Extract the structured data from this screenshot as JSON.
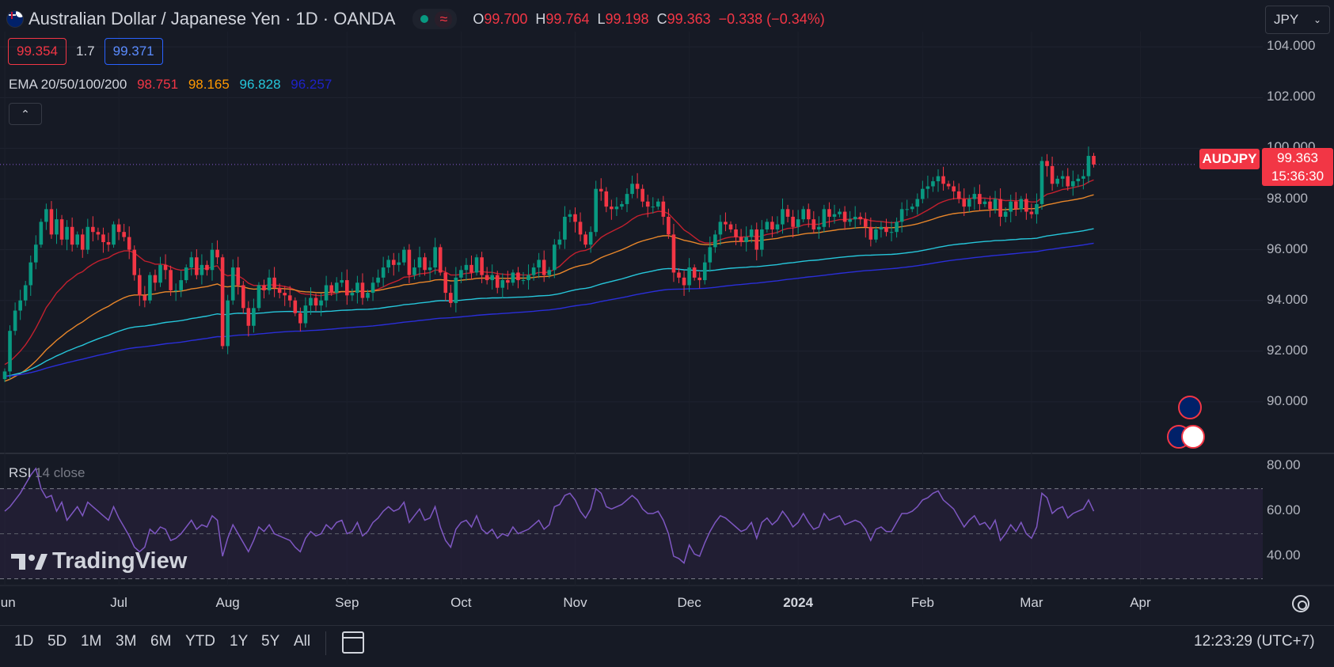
{
  "header": {
    "title": "Australian Dollar / Japanese Yen · 1D · OANDA",
    "status_icon": "wave-approx-icon",
    "approx_glyph": "≈",
    "ohlc": [
      {
        "label": "O",
        "value": "99.700"
      },
      {
        "label": "H",
        "value": "99.764"
      },
      {
        "label": "L",
        "value": "99.198"
      },
      {
        "label": "C",
        "value": "99.363"
      }
    ],
    "change": "−0.338 (−0.34%)",
    "colors": {
      "up": "#089981",
      "down": "#f23645",
      "bg": "#161a25"
    }
  },
  "bidask": {
    "bid": "99.354",
    "spread": "1.7",
    "ask": "99.371"
  },
  "ema": {
    "label": "EMA 20/50/100/200",
    "values": [
      {
        "value": "98.751",
        "color": "#f23645"
      },
      {
        "value": "98.165",
        "color": "#ff9800"
      },
      {
        "value": "96.828",
        "color": "#26c6da"
      },
      {
        "value": "96.257",
        "color": "#1e22c8"
      }
    ]
  },
  "currency_button": {
    "label": "JPY"
  },
  "price_tags": {
    "symbol": "AUDJPY",
    "price": "99.363",
    "countdown": "15:36:30"
  },
  "rsi": {
    "label": "RSI",
    "params": "14 close"
  },
  "logo": "TradingView",
  "timeframes": [
    "1D",
    "5D",
    "1M",
    "3M",
    "6M",
    "YTD",
    "1Y",
    "5Y",
    "All"
  ],
  "clock": "12:23:29 (UTC+7)",
  "chart_data": {
    "type": "candlestick",
    "symbol": "AUDJPY",
    "interval": "1D",
    "y_ticks": [
      "104.000",
      "102.000",
      "100.000",
      "98.000",
      "96.000",
      "94.000",
      "92.000",
      "90.000"
    ],
    "ylim": [
      88.0,
      104.6
    ],
    "x_ticks": [
      {
        "label": "Jun",
        "i": 0
      },
      {
        "label": "Jul",
        "i": 22
      },
      {
        "label": "Aug",
        "i": 43
      },
      {
        "label": "Sep",
        "i": 66
      },
      {
        "label": "Oct",
        "i": 88
      },
      {
        "label": "Nov",
        "i": 110
      },
      {
        "label": "Dec",
        "i": 132
      },
      {
        "label": "2024",
        "i": 153,
        "bold": true
      },
      {
        "label": "Feb",
        "i": 177
      },
      {
        "label": "Mar",
        "i": 198
      },
      {
        "label": "Apr",
        "i": 219
      }
    ],
    "last_price": 99.363,
    "closes": [
      91.2,
      92.8,
      93.6,
      94.0,
      94.6,
      95.5,
      96.2,
      97.1,
      97.6,
      96.6,
      97.2,
      96.4,
      96.9,
      96.2,
      96.6,
      96.0,
      96.9,
      96.7,
      96.6,
      96.3,
      96.2,
      97.0,
      96.7,
      96.5,
      96.0,
      95.0,
      94.2,
      94.0,
      95.0,
      94.7,
      95.4,
      95.2,
      94.4,
      94.4,
      94.8,
      95.3,
      95.7,
      95.0,
      95.4,
      95.2,
      96.0,
      95.7,
      92.2,
      94.0,
      95.3,
      94.6,
      93.7,
      93.0,
      93.7,
      94.6,
      94.4,
      94.9,
      94.5,
      94.3,
      94.2,
      94.0,
      93.5,
      93.1,
      93.8,
      94.1,
      93.8,
      94.0,
      94.6,
      94.3,
      94.7,
      94.8,
      94.2,
      94.3,
      94.7,
      94.1,
      94.3,
      94.7,
      94.9,
      95.3,
      95.6,
      95.4,
      95.5,
      96.0,
      95.0,
      95.3,
      95.7,
      95.2,
      95.3,
      96.1,
      95.1,
      94.3,
      93.9,
      94.9,
      95.2,
      95.4,
      95.1,
      95.7,
      95.0,
      94.8,
      95.0,
      94.5,
      94.8,
      94.7,
      95.1,
      94.8,
      94.8,
      95.0,
      95.3,
      95.6,
      95.0,
      95.2,
      96.2,
      96.4,
      97.3,
      97.4,
      97.1,
      96.6,
      96.2,
      96.7,
      98.4,
      98.3,
      97.7,
      97.6,
      97.7,
      97.8,
      98.2,
      98.6,
      98.4,
      97.9,
      97.7,
      97.7,
      97.9,
      97.3,
      96.6,
      95.1,
      94.9,
      94.6,
      95.3,
      94.9,
      94.8,
      95.5,
      96.1,
      96.6,
      97.1,
      97.0,
      96.8,
      96.5,
      96.3,
      96.5,
      96.8,
      96.0,
      96.8,
      97.1,
      96.8,
      97.0,
      97.6,
      97.3,
      96.9,
      97.2,
      97.6,
      97.2,
      96.8,
      96.9,
      97.6,
      97.3,
      97.4,
      97.5,
      97.1,
      97.2,
      97.3,
      97.2,
      96.9,
      96.4,
      96.8,
      96.9,
      96.7,
      96.7,
      97.1,
      97.6,
      97.6,
      97.7,
      98.0,
      98.4,
      98.5,
      98.7,
      98.9,
      98.6,
      98.5,
      98.3,
      98.0,
      97.7,
      98.0,
      98.2,
      97.8,
      97.9,
      97.6,
      98.0,
      97.3,
      97.5,
      97.9,
      97.6,
      98.0,
      97.5,
      97.4,
      97.8,
      99.5,
      99.3,
      98.6,
      98.8,
      98.9,
      98.5,
      98.7,
      98.8,
      98.9,
      99.7,
      99.36
    ],
    "ema": [
      {
        "period": 20,
        "color": "#c2202e",
        "start": 91.5,
        "end": 98.751
      },
      {
        "period": 50,
        "color": "#e8862a",
        "start": 90.8,
        "end": 98.165
      },
      {
        "period": 100,
        "color": "#26c6da",
        "start": 91.0,
        "end": 96.828
      },
      {
        "period": 200,
        "color": "#2a2ed8",
        "start": 91.0,
        "end": 96.257
      }
    ],
    "rsi": {
      "y_ticks": [
        "80.00",
        "60.00",
        "40.00"
      ],
      "ylim": [
        27,
        85
      ],
      "upper_band": 70,
      "lower_band": 30,
      "mid": 50,
      "values": [
        60,
        62,
        65,
        68,
        72,
        76,
        79,
        70,
        66,
        67,
        60,
        64,
        56,
        59,
        62,
        58,
        64,
        62,
        60,
        58,
        56,
        62,
        57,
        53,
        49,
        44,
        42,
        44,
        52,
        50,
        53,
        52,
        47,
        48,
        50,
        53,
        56,
        52,
        54,
        53,
        58,
        56,
        40,
        48,
        54,
        50,
        46,
        42,
        47,
        53,
        51,
        54,
        50,
        49,
        48,
        47,
        44,
        42,
        48,
        51,
        49,
        50,
        54,
        52,
        55,
        56,
        50,
        51,
        55,
        49,
        51,
        55,
        57,
        60,
        62,
        60,
        61,
        64,
        55,
        58,
        61,
        56,
        57,
        62,
        53,
        47,
        44,
        52,
        55,
        56,
        53,
        58,
        52,
        50,
        52,
        48,
        50,
        49,
        53,
        50,
        51,
        52,
        54,
        56,
        52,
        54,
        62,
        63,
        67,
        68,
        65,
        60,
        57,
        61,
        70,
        68,
        62,
        61,
        62,
        63,
        65,
        67,
        65,
        61,
        59,
        59,
        60,
        56,
        50,
        40,
        39,
        37,
        45,
        41,
        40,
        46,
        51,
        55,
        58,
        57,
        55,
        53,
        51,
        52,
        55,
        48,
        55,
        57,
        54,
        56,
        60,
        57,
        53,
        55,
        59,
        55,
        52,
        53,
        59,
        56,
        57,
        58,
        54,
        55,
        56,
        55,
        52,
        47,
        52,
        53,
        51,
        51,
        55,
        59,
        59,
        60,
        62,
        65,
        66,
        68,
        69,
        65,
        63,
        61,
        57,
        53,
        56,
        58,
        54,
        55,
        52,
        56,
        47,
        50,
        54,
        51,
        55,
        50,
        48,
        53,
        68,
        66,
        59,
        61,
        62,
        57,
        59,
        60,
        61,
        65,
        60
      ]
    }
  }
}
